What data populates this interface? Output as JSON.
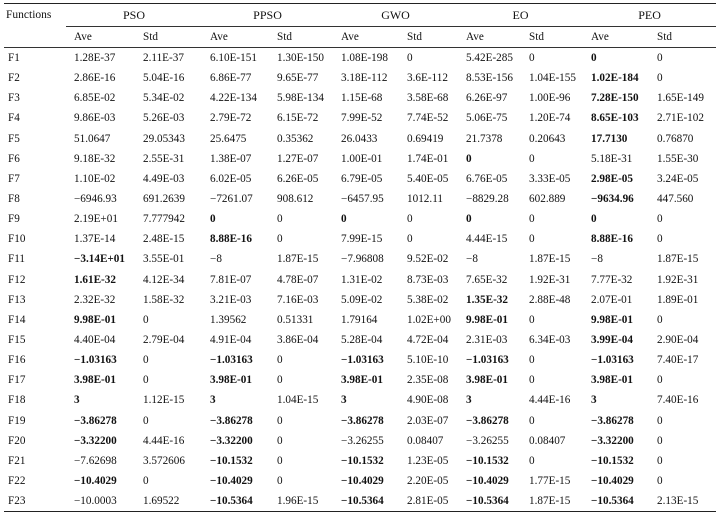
{
  "table": {
    "corner": "Functions",
    "algorithms": [
      "PSO",
      "PPSO",
      "GWO",
      "EO",
      "PEO"
    ],
    "subheaders": [
      "Ave",
      "Std"
    ],
    "rows": [
      {
        "fn": "F1",
        "cells": [
          [
            "1.28E-37",
            0
          ],
          [
            "2.11E-37",
            0
          ],
          [
            "6.10E-151",
            0
          ],
          [
            "1.30E-150",
            0
          ],
          [
            "1.08E-198",
            0
          ],
          [
            "0",
            0
          ],
          [
            "5.42E-285",
            0
          ],
          [
            "0",
            0
          ],
          [
            "0",
            1
          ],
          [
            "0",
            0
          ]
        ]
      },
      {
        "fn": "F2",
        "cells": [
          [
            "2.86E-16",
            0
          ],
          [
            "5.04E-16",
            0
          ],
          [
            "6.86E-77",
            0
          ],
          [
            "9.65E-77",
            0
          ],
          [
            "3.18E-112",
            0
          ],
          [
            "3.6E-112",
            0
          ],
          [
            "8.53E-156",
            0
          ],
          [
            "1.04E-155",
            0
          ],
          [
            "1.02E-184",
            1
          ],
          [
            "0",
            0
          ]
        ]
      },
      {
        "fn": "F3",
        "cells": [
          [
            "6.85E-02",
            0
          ],
          [
            "5.34E-02",
            0
          ],
          [
            "4.22E-134",
            0
          ],
          [
            "5.98E-134",
            0
          ],
          [
            "1.15E-68",
            0
          ],
          [
            "3.58E-68",
            0
          ],
          [
            "6.26E-97",
            0
          ],
          [
            "1.00E-96",
            0
          ],
          [
            "7.28E-150",
            1
          ],
          [
            "1.65E-149",
            0
          ]
        ]
      },
      {
        "fn": "F4",
        "cells": [
          [
            "9.86E-03",
            0
          ],
          [
            "5.26E-03",
            0
          ],
          [
            "2.79E-72",
            0
          ],
          [
            "6.15E-72",
            0
          ],
          [
            "7.99E-52",
            0
          ],
          [
            "7.74E-52",
            0
          ],
          [
            "5.06E-75",
            0
          ],
          [
            "1.20E-74",
            0
          ],
          [
            "8.65E-103",
            1
          ],
          [
            "2.71E-102",
            0
          ]
        ]
      },
      {
        "fn": "F5",
        "cells": [
          [
            "51.0647",
            0
          ],
          [
            "29.05343",
            0
          ],
          [
            "25.6475",
            0
          ],
          [
            "0.35362",
            0
          ],
          [
            "26.0433",
            0
          ],
          [
            "0.69419",
            0
          ],
          [
            "21.7378",
            0
          ],
          [
            "0.20643",
            0
          ],
          [
            "17.7130",
            1
          ],
          [
            "0.76870",
            0
          ]
        ]
      },
      {
        "fn": "F6",
        "cells": [
          [
            "9.18E-32",
            0
          ],
          [
            "2.55E-31",
            0
          ],
          [
            "1.38E-07",
            0
          ],
          [
            "1.27E-07",
            0
          ],
          [
            "1.00E-01",
            0
          ],
          [
            "1.74E-01",
            0
          ],
          [
            "0",
            1
          ],
          [
            "0",
            0
          ],
          [
            "5.18E-31",
            0
          ],
          [
            "1.55E-30",
            0
          ]
        ]
      },
      {
        "fn": "F7",
        "cells": [
          [
            "1.10E-02",
            0
          ],
          [
            "4.49E-03",
            0
          ],
          [
            "6.02E-05",
            0
          ],
          [
            "6.26E-05",
            0
          ],
          [
            "6.79E-05",
            0
          ],
          [
            "5.40E-05",
            0
          ],
          [
            "6.76E-05",
            0
          ],
          [
            "3.33E-05",
            0
          ],
          [
            "2.98E-05",
            1
          ],
          [
            "3.24E-05",
            0
          ]
        ]
      },
      {
        "fn": "F8",
        "cells": [
          [
            "−6946.93",
            0
          ],
          [
            "691.2639",
            0
          ],
          [
            "−7261.07",
            0
          ],
          [
            "908.612",
            0
          ],
          [
            "−6457.95",
            0
          ],
          [
            "1012.11",
            0
          ],
          [
            "−8829.28",
            0
          ],
          [
            "602.889",
            0
          ],
          [
            "−9634.96",
            1
          ],
          [
            "447.560",
            0
          ]
        ]
      },
      {
        "fn": "F9",
        "cells": [
          [
            "2.19E+01",
            0
          ],
          [
            "7.777942",
            0
          ],
          [
            "0",
            1
          ],
          [
            "0",
            0
          ],
          [
            "0",
            1
          ],
          [
            "0",
            0
          ],
          [
            "0",
            1
          ],
          [
            "0",
            0
          ],
          [
            "0",
            1
          ],
          [
            "0",
            0
          ]
        ]
      },
      {
        "fn": "F10",
        "cells": [
          [
            "1.37E-14",
            0
          ],
          [
            "2.48E-15",
            0
          ],
          [
            "8.88E-16",
            1
          ],
          [
            "0",
            0
          ],
          [
            "7.99E-15",
            0
          ],
          [
            "0",
            0
          ],
          [
            "4.44E-15",
            0
          ],
          [
            "0",
            0
          ],
          [
            "8.88E-16",
            1
          ],
          [
            "0",
            0
          ]
        ]
      },
      {
        "fn": "F11",
        "cells": [
          [
            "−3.14E+01",
            1
          ],
          [
            "3.55E-01",
            0
          ],
          [
            "−8",
            0
          ],
          [
            "1.87E-15",
            0
          ],
          [
            "−7.96808",
            0
          ],
          [
            "9.52E-02",
            0
          ],
          [
            "−8",
            0
          ],
          [
            "1.87E-15",
            0
          ],
          [
            "−8",
            0
          ],
          [
            "1.87E-15",
            0
          ]
        ]
      },
      {
        "fn": "F12",
        "cells": [
          [
            "1.61E-32",
            1
          ],
          [
            "4.12E-34",
            0
          ],
          [
            "7.81E-07",
            0
          ],
          [
            "4.78E-07",
            0
          ],
          [
            "1.31E-02",
            0
          ],
          [
            "8.73E-03",
            0
          ],
          [
            "7.65E-32",
            0
          ],
          [
            "1.92E-31",
            0
          ],
          [
            "7.77E-32",
            0
          ],
          [
            "1.92E-31",
            0
          ]
        ]
      },
      {
        "fn": "F13",
        "cells": [
          [
            "2.32E-32",
            0
          ],
          [
            "1.58E-32",
            0
          ],
          [
            "3.21E-03",
            0
          ],
          [
            "7.16E-03",
            0
          ],
          [
            "5.09E-02",
            0
          ],
          [
            "5.38E-02",
            0
          ],
          [
            "1.35E-32",
            1
          ],
          [
            "2.88E-48",
            0
          ],
          [
            "2.07E-01",
            0
          ],
          [
            "1.89E-01",
            0
          ]
        ]
      },
      {
        "fn": "F14",
        "cells": [
          [
            "9.98E-01",
            1
          ],
          [
            "0",
            0
          ],
          [
            "1.39562",
            0
          ],
          [
            "0.51331",
            0
          ],
          [
            "1.79164",
            0
          ],
          [
            "1.02E+00",
            0
          ],
          [
            "9.98E-01",
            1
          ],
          [
            "0",
            0
          ],
          [
            "9.98E-01",
            1
          ],
          [
            "0",
            0
          ]
        ]
      },
      {
        "fn": "F15",
        "cells": [
          [
            "4.40E-04",
            0
          ],
          [
            "2.79E-04",
            0
          ],
          [
            "4.91E-04",
            0
          ],
          [
            "3.86E-04",
            0
          ],
          [
            "5.28E-04",
            0
          ],
          [
            "4.72E-04",
            0
          ],
          [
            "2.31E-03",
            0
          ],
          [
            "6.34E-03",
            0
          ],
          [
            "3.99E-04",
            1
          ],
          [
            "2.90E-04",
            0
          ]
        ]
      },
      {
        "fn": "F16",
        "cells": [
          [
            "−1.03163",
            1
          ],
          [
            "0",
            0
          ],
          [
            "−1.03163",
            1
          ],
          [
            "0",
            0
          ],
          [
            "−1.03163",
            1
          ],
          [
            "5.10E-10",
            0
          ],
          [
            "−1.03163",
            1
          ],
          [
            "0",
            0
          ],
          [
            "−1.03163",
            1
          ],
          [
            "7.40E-17",
            0
          ]
        ]
      },
      {
        "fn": "F17",
        "cells": [
          [
            "3.98E-01",
            1
          ],
          [
            "0",
            0
          ],
          [
            "3.98E-01",
            1
          ],
          [
            "0",
            0
          ],
          [
            "3.98E-01",
            1
          ],
          [
            "2.35E-08",
            0
          ],
          [
            "3.98E-01",
            1
          ],
          [
            "0",
            0
          ],
          [
            "3.98E-01",
            1
          ],
          [
            "0",
            0
          ]
        ]
      },
      {
        "fn": "F18",
        "cells": [
          [
            "3",
            1
          ],
          [
            "1.12E-15",
            0
          ],
          [
            "3",
            1
          ],
          [
            "1.04E-15",
            0
          ],
          [
            "3",
            1
          ],
          [
            "4.90E-08",
            0
          ],
          [
            "3",
            1
          ],
          [
            "4.44E-16",
            0
          ],
          [
            "3",
            1
          ],
          [
            "7.40E-16",
            0
          ]
        ]
      },
      {
        "fn": "F19",
        "cells": [
          [
            "−3.86278",
            1
          ],
          [
            "0",
            0
          ],
          [
            "−3.86278",
            1
          ],
          [
            "0",
            0
          ],
          [
            "−3.86278",
            1
          ],
          [
            "2.03E-07",
            0
          ],
          [
            "−3.86278",
            1
          ],
          [
            "0",
            0
          ],
          [
            "−3.86278",
            1
          ],
          [
            "0",
            0
          ]
        ]
      },
      {
        "fn": "F20",
        "cells": [
          [
            "−3.32200",
            1
          ],
          [
            "4.44E-16",
            0
          ],
          [
            "−3.32200",
            1
          ],
          [
            "0",
            0
          ],
          [
            "−3.26255",
            0
          ],
          [
            "0.08407",
            0
          ],
          [
            "−3.26255",
            0
          ],
          [
            "0.08407",
            0
          ],
          [
            "−3.32200",
            1
          ],
          [
            "0",
            0
          ]
        ]
      },
      {
        "fn": "F21",
        "cells": [
          [
            "−7.62698",
            0
          ],
          [
            "3.572606",
            0
          ],
          [
            "−10.1532",
            1
          ],
          [
            "0",
            0
          ],
          [
            "−10.1532",
            1
          ],
          [
            "1.23E-05",
            0
          ],
          [
            "−10.1532",
            1
          ],
          [
            "0",
            0
          ],
          [
            "−10.1532",
            1
          ],
          [
            "0",
            0
          ]
        ]
      },
      {
        "fn": "F22",
        "cells": [
          [
            "−10.4029",
            1
          ],
          [
            "0",
            0
          ],
          [
            "−10.4029",
            1
          ],
          [
            "0",
            0
          ],
          [
            "−10.4029",
            1
          ],
          [
            "2.20E-05",
            0
          ],
          [
            "−10.4029",
            1
          ],
          [
            "1.77E-15",
            0
          ],
          [
            "−10.4029",
            1
          ],
          [
            "0",
            0
          ]
        ]
      },
      {
        "fn": "F23",
        "cells": [
          [
            "−10.0003",
            0
          ],
          [
            "1.69522",
            0
          ],
          [
            "−10.5364",
            1
          ],
          [
            "1.96E-15",
            0
          ],
          [
            "−10.5364",
            1
          ],
          [
            "2.81E-05",
            0
          ],
          [
            "−10.5364",
            1
          ],
          [
            "1.87E-15",
            0
          ],
          [
            "−10.5364",
            1
          ],
          [
            "2.13E-15",
            0
          ]
        ]
      }
    ]
  }
}
